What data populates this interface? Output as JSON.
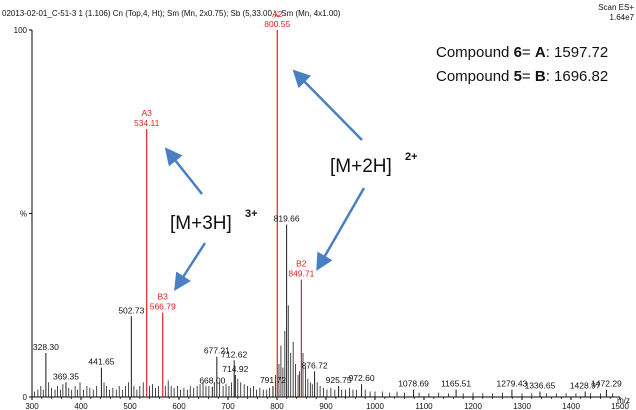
{
  "header": {
    "left": "02013-02-01_C-51-3  1 (1.106) Cn (Top,4, Ht); Sm (Mn, 2x0.75); Sb (5,33.00 ); Sm (Mn, 4x1.00)",
    "right_top": "Scan ES+",
    "right_bottom": "1.64e7"
  },
  "compounds": [
    {
      "prefix": "Compound ",
      "num": "6",
      "mid": "= ",
      "letter": "A",
      "value": ": 1597.72"
    },
    {
      "prefix": "Compound ",
      "num": "5",
      "mid": "= ",
      "letter": "B",
      "value": ": 1696.82"
    }
  ],
  "annotations": {
    "m3h_main": "[M+3H]",
    "m3h_sup": "3+",
    "m2h_main": "[M+2H]",
    "m2h_sup": "2+"
  },
  "colors": {
    "black_peak": "#1a1a1a",
    "red_peak": "#e02020",
    "arrow": "#4a7fc4"
  },
  "chart_data": {
    "type": "line",
    "xlabel": "m/z",
    "ylabel": "%",
    "xlim": [
      300,
      1500
    ],
    "ylim": [
      0,
      100
    ],
    "x_ticks": [
      "300",
      "400",
      "500",
      "600",
      "700",
      "800",
      "900",
      "1000",
      "1100",
      "1200",
      "1300",
      "1400",
      "1500"
    ],
    "y_ticks": [
      "0",
      "%",
      "100"
    ],
    "labeled_peaks": [
      {
        "mz": 328.3,
        "y": 12,
        "label": "328.30"
      },
      {
        "mz": 369.35,
        "y": 4,
        "label": "369.35"
      },
      {
        "mz": 441.65,
        "y": 8,
        "label": "441.65"
      },
      {
        "mz": 502.73,
        "y": 22,
        "label": "502.73"
      },
      {
        "mz": 534.11,
        "y": 73,
        "label": "534.11",
        "tag": "A3",
        "red": true
      },
      {
        "mz": 566.79,
        "y": 23,
        "label": "566.79",
        "tag": "B3",
        "red": true
      },
      {
        "mz": 668.0,
        "y": 2.8,
        "label": "668.00"
      },
      {
        "mz": 677.21,
        "y": 11,
        "label": "677.21"
      },
      {
        "mz": 712.62,
        "y": 10,
        "label": "712.62"
      },
      {
        "mz": 714.92,
        "y": 6,
        "label": "714.92"
      },
      {
        "mz": 791.72,
        "y": 3,
        "label": "791.72"
      },
      {
        "mz": 800.55,
        "y": 100,
        "label": "800.55",
        "tag": "A2",
        "red": true
      },
      {
        "mz": 819.66,
        "y": 47,
        "label": "819.66"
      },
      {
        "mz": 849.71,
        "y": 32,
        "label": "849.71",
        "tag": "B2",
        "red": true
      },
      {
        "mz": 876.72,
        "y": 7,
        "label": "876.72"
      },
      {
        "mz": 925.75,
        "y": 3,
        "label": "925.75"
      },
      {
        "mz": 972.6,
        "y": 3.5,
        "label": "972.60"
      },
      {
        "mz": 1078.69,
        "y": 2,
        "label": "1078.69"
      },
      {
        "mz": 1165.51,
        "y": 2,
        "label": "1165.51"
      },
      {
        "mz": 1279.43,
        "y": 2,
        "label": "1279.43"
      },
      {
        "mz": 1336.65,
        "y": 1.5,
        "label": "1336.65"
      },
      {
        "mz": 1428.97,
        "y": 1.5,
        "label": "1428.97"
      },
      {
        "mz": 1472.29,
        "y": 2,
        "label": "1472.29"
      }
    ],
    "minor_peaks": [
      [
        305,
        1.5
      ],
      [
        312,
        2
      ],
      [
        318,
        3
      ],
      [
        323,
        2
      ],
      [
        334,
        4
      ],
      [
        340,
        2.5
      ],
      [
        347,
        2
      ],
      [
        352,
        3
      ],
      [
        358,
        2
      ],
      [
        363,
        3.5
      ],
      [
        375,
        2.5
      ],
      [
        381,
        2
      ],
      [
        388,
        3
      ],
      [
        393,
        2
      ],
      [
        398,
        4
      ],
      [
        405,
        2
      ],
      [
        412,
        3
      ],
      [
        418,
        2.5
      ],
      [
        425,
        2
      ],
      [
        432,
        3
      ],
      [
        447,
        4
      ],
      [
        452,
        3
      ],
      [
        458,
        2
      ],
      [
        465,
        2.5
      ],
      [
        472,
        2
      ],
      [
        478,
        3
      ],
      [
        485,
        2
      ],
      [
        491,
        3
      ],
      [
        497,
        4
      ],
      [
        508,
        3
      ],
      [
        514,
        2
      ],
      [
        520,
        3
      ],
      [
        527,
        4
      ],
      [
        540,
        3
      ],
      [
        546,
        3.5
      ],
      [
        552,
        2.5
      ],
      [
        558,
        3
      ],
      [
        572,
        3
      ],
      [
        578,
        4.5
      ],
      [
        584,
        3
      ],
      [
        590,
        2.5
      ],
      [
        597,
        3
      ],
      [
        603,
        2
      ],
      [
        610,
        2.5
      ],
      [
        617,
        2
      ],
      [
        623,
        3
      ],
      [
        630,
        2.5
      ],
      [
        637,
        3
      ],
      [
        643,
        3.5
      ],
      [
        649,
        4
      ],
      [
        655,
        3
      ],
      [
        661,
        3
      ],
      [
        672,
        4
      ],
      [
        683,
        4
      ],
      [
        690,
        3
      ],
      [
        696,
        3.5
      ],
      [
        702,
        3
      ],
      [
        707,
        4
      ],
      [
        720,
        5
      ],
      [
        726,
        4
      ],
      [
        733,
        3.5
      ],
      [
        740,
        3
      ],
      [
        746,
        2.5
      ],
      [
        752,
        3
      ],
      [
        758,
        2
      ],
      [
        765,
        2.5
      ],
      [
        772,
        2
      ],
      [
        779,
        2
      ],
      [
        785,
        2.5
      ],
      [
        797,
        6
      ],
      [
        804,
        9
      ],
      [
        808,
        14
      ],
      [
        812,
        8
      ],
      [
        816,
        18
      ],
      [
        823,
        25
      ],
      [
        828,
        12
      ],
      [
        833,
        15
      ],
      [
        838,
        9
      ],
      [
        843,
        6
      ],
      [
        846,
        7
      ],
      [
        853,
        12
      ],
      [
        858,
        8
      ],
      [
        863,
        5
      ],
      [
        868,
        4
      ],
      [
        872,
        3.5
      ],
      [
        882,
        4
      ],
      [
        888,
        3
      ],
      [
        895,
        2.5
      ],
      [
        902,
        2
      ],
      [
        910,
        2.5
      ],
      [
        918,
        2
      ],
      [
        932,
        2
      ],
      [
        940,
        2
      ],
      [
        948,
        2.5
      ],
      [
        955,
        2
      ],
      [
        962,
        2
      ],
      [
        980,
        2
      ],
      [
        990,
        1.5
      ],
      [
        1000,
        1.5
      ],
      [
        1015,
        1.5
      ],
      [
        1030,
        1.2
      ],
      [
        1045,
        1.5
      ],
      [
        1060,
        1.2
      ],
      [
        1090,
        1.2
      ],
      [
        1110,
        1
      ],
      [
        1130,
        1.2
      ],
      [
        1150,
        1
      ],
      [
        1180,
        1
      ],
      [
        1200,
        1.2
      ],
      [
        1220,
        1
      ],
      [
        1240,
        1
      ],
      [
        1260,
        1.2
      ],
      [
        1300,
        1
      ],
      [
        1320,
        1
      ],
      [
        1350,
        1
      ],
      [
        1370,
        1
      ],
      [
        1390,
        1
      ],
      [
        1410,
        1
      ],
      [
        1440,
        1
      ],
      [
        1460,
        1
      ],
      [
        1485,
        1
      ]
    ]
  }
}
